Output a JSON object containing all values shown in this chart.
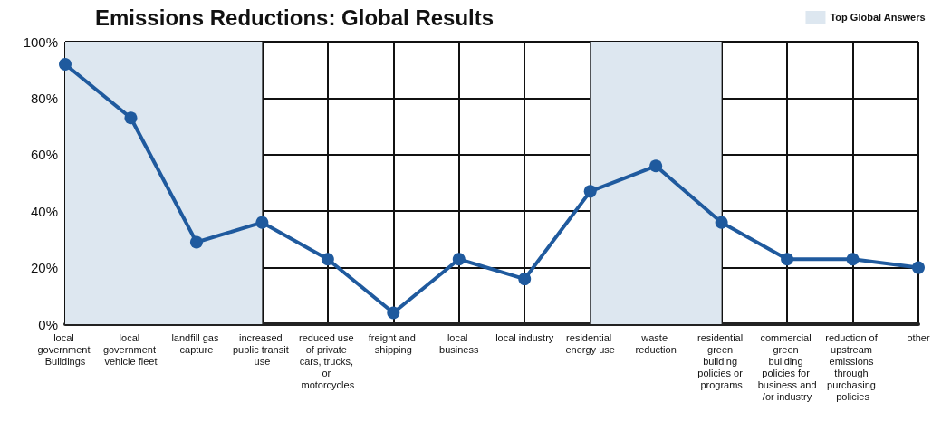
{
  "chart_data": {
    "type": "line",
    "title": "Emissions Reductions: Global Results",
    "categories": [
      "local government Buildings",
      "local government vehicle fleet",
      "landfill gas capture",
      "increased public transit use",
      "reduced use of private cars, trucks, or motorcycles",
      "freight and shipping",
      "local business",
      "local industry",
      "residential energy use",
      "waste reduction",
      "residential green building policies or programs",
      "commercial green building policies for business and/or industry",
      "reduction of upstream emissions through purchasing policies",
      "other"
    ],
    "series": [
      {
        "color": "#1f5a9e",
        "values": [
          92,
          73,
          29,
          36,
          23,
          4,
          23,
          16,
          47,
          56,
          36,
          23,
          23,
          20
        ]
      }
    ],
    "ylim": [
      0,
      100
    ],
    "yticks": [
      {
        "value": 0,
        "label": "0%"
      },
      {
        "value": 20,
        "label": "20%"
      },
      {
        "value": 40,
        "label": "40%"
      },
      {
        "value": 60,
        "label": "60%"
      },
      {
        "value": 80,
        "label": "80%"
      },
      {
        "value": 100,
        "label": "100%"
      }
    ],
    "grid": true,
    "marker": "circle",
    "line_style": "solid",
    "legend": "top right",
    "bands": [
      {
        "axis": "x",
        "from": "local government Buildings",
        "to": "increased public transit use",
        "label": "Top Global Answers",
        "color": "#dde7f0"
      },
      {
        "axis": "x",
        "from": "residential energy use",
        "to": "residential green building policies or programs",
        "color": "#dde7f0"
      }
    ]
  }
}
